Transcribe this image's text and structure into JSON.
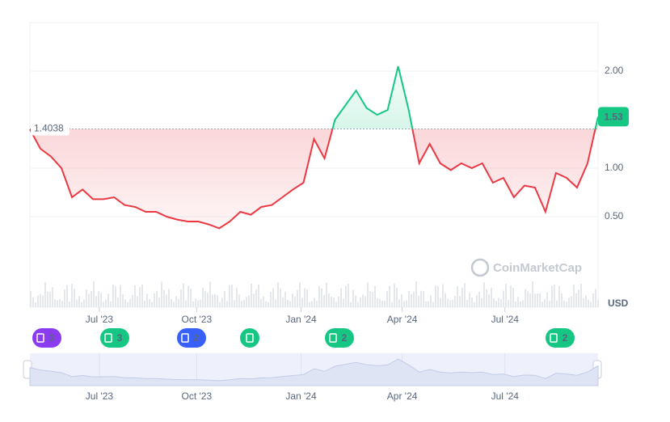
{
  "chart_data": {
    "type": "line",
    "baseline": 1.4038,
    "baseline_label": "1.4038",
    "current_label": "1.53",
    "currency": "USD",
    "watermark": "CoinMarketCap",
    "categories": [
      null,
      null,
      null,
      null,
      null,
      null,
      null,
      null,
      null,
      null,
      null,
      null,
      null,
      null,
      null,
      null,
      null,
      null,
      null,
      null,
      null,
      null,
      null,
      null,
      null,
      null,
      null,
      null,
      null,
      null,
      null,
      null,
      null,
      null,
      null,
      null,
      null,
      null,
      null,
      null,
      null,
      null,
      null,
      null,
      null,
      null,
      null,
      null,
      null,
      null,
      null,
      null,
      null,
      null,
      null
    ],
    "values": [
      1.4,
      1.2,
      1.12,
      1.0,
      0.7,
      0.78,
      0.68,
      0.68,
      0.7,
      0.62,
      0.6,
      0.55,
      0.55,
      0.5,
      0.47,
      0.45,
      0.45,
      0.42,
      0.38,
      0.45,
      0.55,
      0.52,
      0.6,
      0.62,
      0.7,
      0.78,
      0.85,
      1.3,
      1.1,
      1.5,
      1.65,
      1.8,
      1.62,
      1.55,
      1.6,
      2.05,
      1.6,
      1.05,
      1.25,
      1.05,
      0.98,
      1.05,
      1.0,
      1.05,
      0.85,
      0.9,
      0.7,
      0.82,
      0.8,
      0.55,
      0.95,
      0.9,
      0.8,
      1.05,
      1.53
    ],
    "up_color": "#16c784",
    "down_color": "#ea3943",
    "ylim": [
      0,
      2.5
    ],
    "yticks": [
      {
        "value": 0.5,
        "label": "0.50"
      },
      {
        "value": 1.0,
        "label": "1.00"
      },
      {
        "value": 2.0,
        "label": "2.00"
      }
    ],
    "xlim": [
      0,
      54
    ],
    "xticks": [
      {
        "value": 6.6,
        "label": "Jul '23"
      },
      {
        "value": 15.85,
        "label": "Oct '23"
      },
      {
        "value": 25.77,
        "label": "Jan '24"
      },
      {
        "value": 35.38,
        "label": "Apr '24"
      },
      {
        "value": 45.15,
        "label": "Jul '24"
      }
    ],
    "grid": true,
    "events": [
      {
        "label": "3",
        "color": "#8c3cf0"
      },
      {
        "label": "3",
        "color": "#16c784"
      },
      {
        "label": "2",
        "color": "#3861fb"
      },
      {
        "label": null,
        "color": "#16c784"
      },
      {
        "label": "2",
        "color": "#16c784"
      },
      {
        "label": "2",
        "color": "#16c784"
      }
    ]
  }
}
